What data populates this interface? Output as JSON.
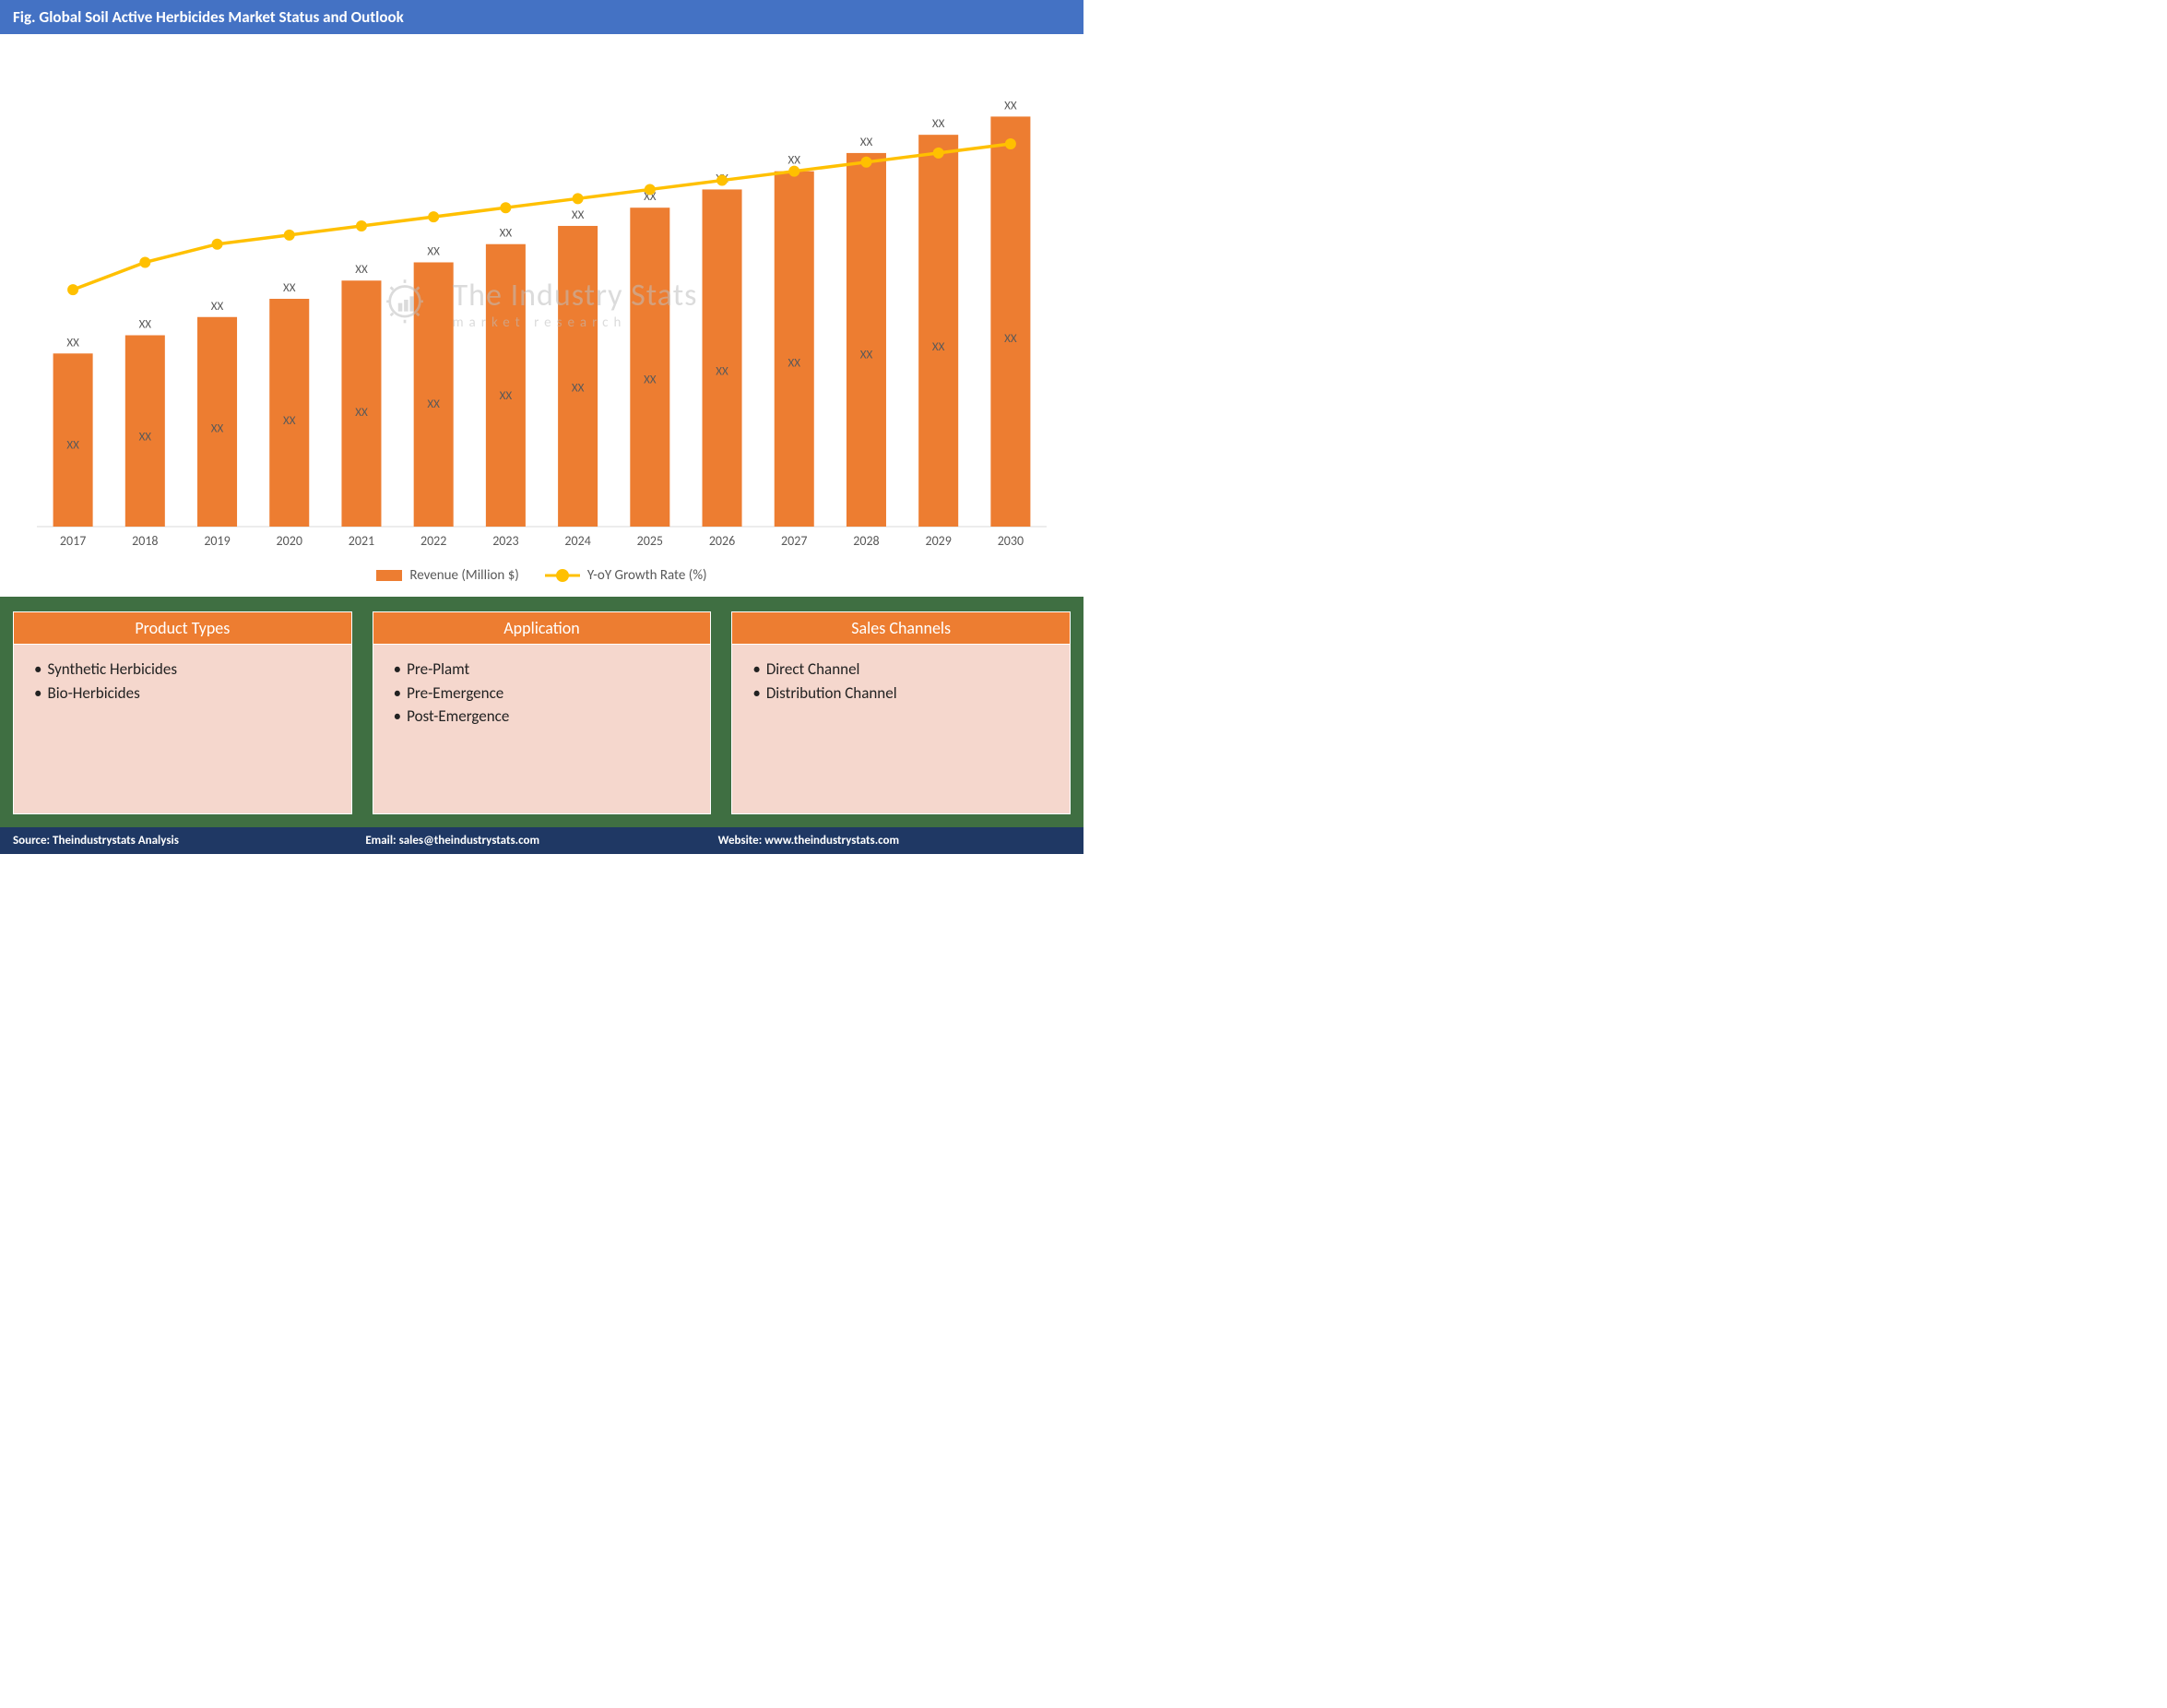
{
  "title": "Fig. Global Soil Active Herbicides Market Status and Outlook",
  "chart": {
    "type": "bar+line",
    "categories": [
      "2017",
      "2018",
      "2019",
      "2020",
      "2021",
      "2022",
      "2023",
      "2024",
      "2025",
      "2026",
      "2027",
      "2028",
      "2029",
      "2030"
    ],
    "bar_values": [
      38,
      42,
      46,
      50,
      54,
      58,
      62,
      66,
      70,
      74,
      78,
      82,
      86,
      90
    ],
    "bar_top_labels": [
      "XX",
      "XX",
      "XX",
      "XX",
      "XX",
      "XX",
      "XX",
      "XX",
      "XX",
      "XX",
      "XX",
      "XX",
      "XX",
      "XX"
    ],
    "bar_inner_labels": [
      "XX",
      "XX",
      "XX",
      "XX",
      "XX",
      "XX",
      "XX",
      "XX",
      "XX",
      "XX",
      "XX",
      "XX",
      "XX",
      "XX"
    ],
    "line_values": [
      52,
      58,
      62,
      64,
      66,
      68,
      70,
      72,
      74,
      76,
      78,
      80,
      82,
      84
    ],
    "ylim": [
      0,
      100
    ],
    "bar_color": "#ed7d31",
    "line_color": "#ffc000",
    "marker_fill": "#ffc000",
    "axis_color": "#d9d9d9",
    "label_color": "#595959",
    "label_fontsize": 14,
    "data_label_fontsize": 13,
    "bar_width_ratio": 0.55,
    "background_color": "#ffffff"
  },
  "legend": {
    "bar_label": "Revenue (Million $)",
    "line_label": "Y-oY Growth Rate (%)"
  },
  "watermark": {
    "main": "The Industry Stats",
    "sub": "market research"
  },
  "panels": [
    {
      "title": "Product Types",
      "items": [
        "Synthetic Herbicides",
        "Bio-Herbicides"
      ]
    },
    {
      "title": "Application",
      "items": [
        "Pre-Plamt",
        "Pre-Emergence",
        "Post-Emergence"
      ]
    },
    {
      "title": "Sales Channels",
      "items": [
        "Direct Channel",
        "Distribution Channel"
      ]
    }
  ],
  "footer": {
    "source": "Source: Theindustrystats Analysis",
    "email": "Email: sales@theindustrystats.com",
    "website": "Website: www.theindustrystats.com"
  },
  "colors": {
    "title_bg": "#4472c4",
    "panels_band_bg": "#3f6f42",
    "panel_header_bg": "#ed7d31",
    "panel_body_bg": "#f5d7cd",
    "footer_bg": "#1f3864"
  }
}
